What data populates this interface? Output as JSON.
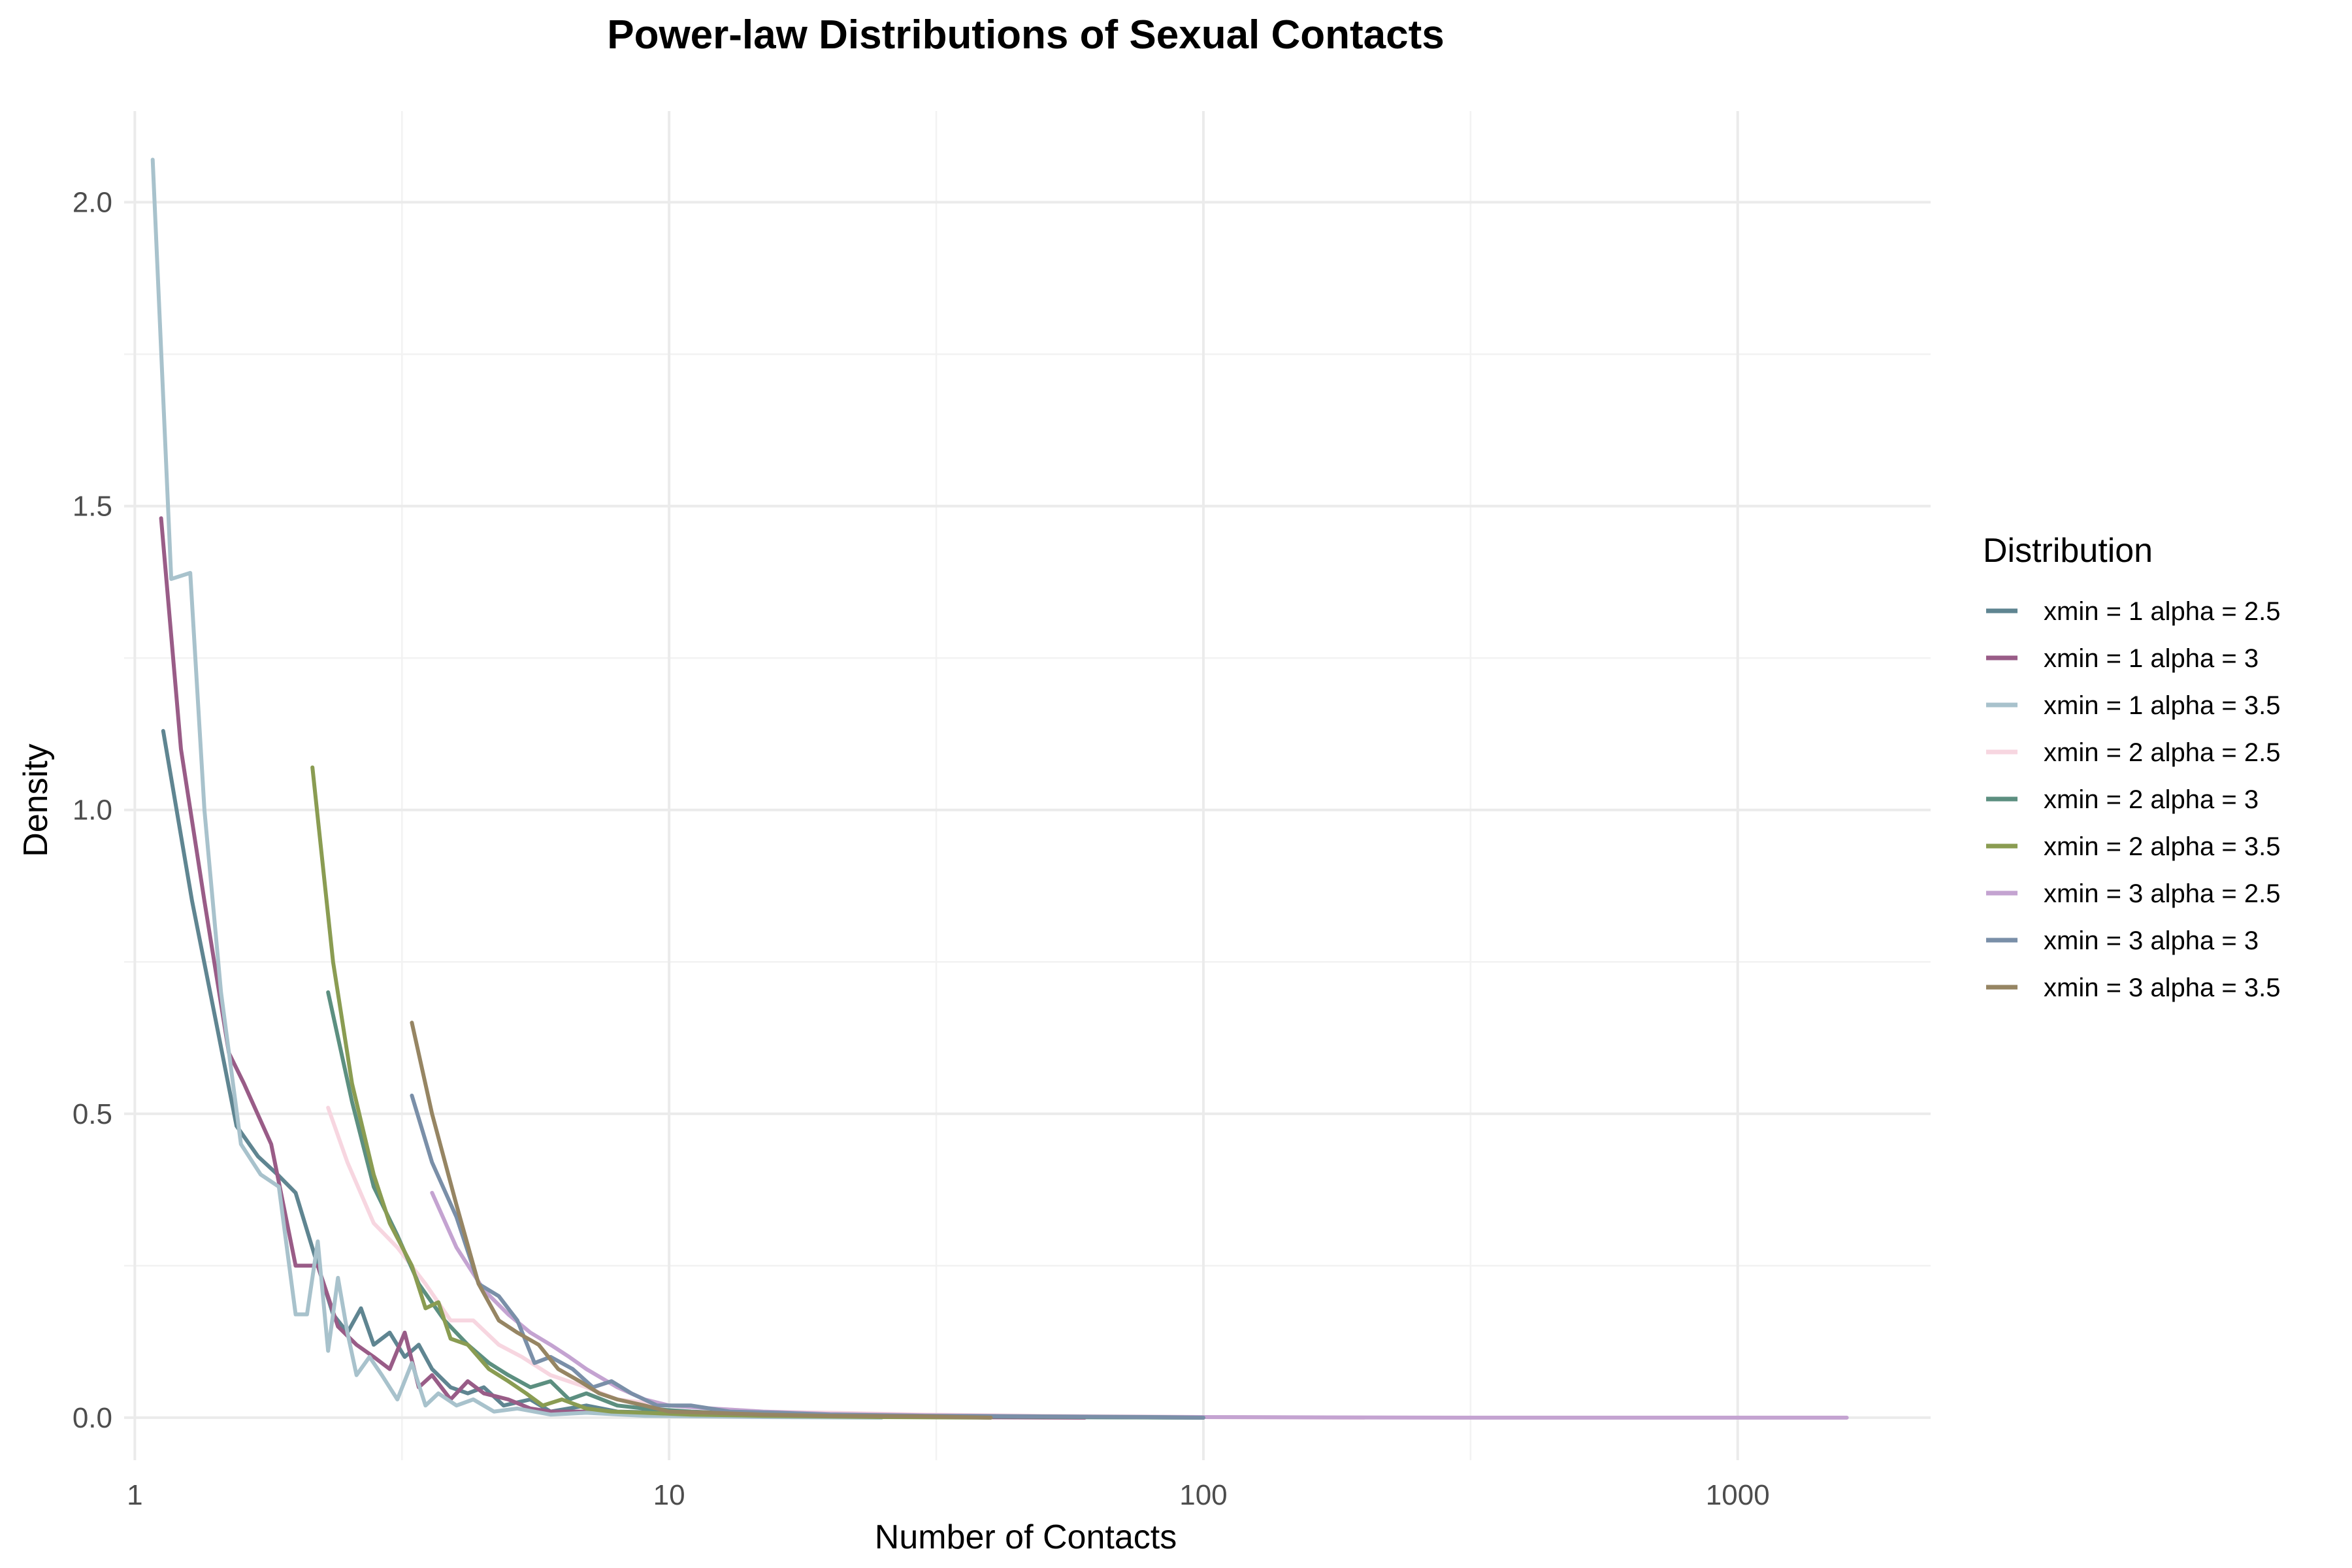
{
  "chart_data": {
    "type": "line",
    "title": "Power-law Distributions of Sexual Contacts",
    "xlabel": "Number of Contacts",
    "ylabel": "Density",
    "x_scale": "log10",
    "xlim": [
      1,
      2000
    ],
    "ylim": [
      -0.07,
      2.15
    ],
    "x_ticks": [
      1,
      10,
      100,
      1000
    ],
    "x_tick_labels": [
      "1",
      "10",
      "100",
      "1000"
    ],
    "y_ticks": [
      0,
      0.5,
      1.0,
      1.5,
      2.0
    ],
    "y_tick_labels": [
      "0.0",
      "0.5",
      "1.0",
      "1.5",
      "2.0"
    ],
    "grid": true,
    "legend": {
      "title": "Distribution",
      "position": "right"
    },
    "series": [
      {
        "name": "xmin = 1 alpha = 2.5",
        "color": "#5f8591",
        "points": [
          [
            1.13,
            1.13
          ],
          [
            1.28,
            0.85
          ],
          [
            1.42,
            0.65
          ],
          [
            1.55,
            0.48
          ],
          [
            1.7,
            0.43
          ],
          [
            1.85,
            0.4
          ],
          [
            2.0,
            0.37
          ],
          [
            2.2,
            0.25
          ],
          [
            2.35,
            0.17
          ],
          [
            2.5,
            0.14
          ],
          [
            2.65,
            0.18
          ],
          [
            2.8,
            0.12
          ],
          [
            3.0,
            0.14
          ],
          [
            3.2,
            0.1
          ],
          [
            3.4,
            0.12
          ],
          [
            3.6,
            0.08
          ],
          [
            3.9,
            0.05
          ],
          [
            4.2,
            0.04
          ],
          [
            4.5,
            0.05
          ],
          [
            4.9,
            0.02
          ],
          [
            5.5,
            0.03
          ],
          [
            6.0,
            0.01
          ],
          [
            7.0,
            0.02
          ],
          [
            8.0,
            0.01
          ],
          [
            10,
            0.008
          ],
          [
            13,
            0.005
          ],
          [
            20,
            0.004
          ],
          [
            30,
            0.002
          ],
          [
            50,
            0.001
          ],
          [
            100,
            0.0
          ]
        ]
      },
      {
        "name": "xmin = 1 alpha = 3",
        "color": "#995c87",
        "points": [
          [
            1.12,
            1.48
          ],
          [
            1.22,
            1.1
          ],
          [
            1.35,
            0.85
          ],
          [
            1.5,
            0.6
          ],
          [
            1.6,
            0.55
          ],
          [
            1.8,
            0.45
          ],
          [
            2.0,
            0.25
          ],
          [
            2.2,
            0.25
          ],
          [
            2.4,
            0.15
          ],
          [
            2.6,
            0.12
          ],
          [
            2.8,
            0.1
          ],
          [
            3.0,
            0.08
          ],
          [
            3.2,
            0.14
          ],
          [
            3.4,
            0.05
          ],
          [
            3.6,
            0.07
          ],
          [
            3.9,
            0.03
          ],
          [
            4.2,
            0.06
          ],
          [
            4.5,
            0.04
          ],
          [
            5.0,
            0.03
          ],
          [
            5.5,
            0.015
          ],
          [
            6.0,
            0.01
          ],
          [
            7.0,
            0.01
          ],
          [
            9.0,
            0.005
          ],
          [
            15,
            0.002
          ],
          [
            30,
            0.001
          ],
          [
            60,
            0.0
          ]
        ]
      },
      {
        "name": "xmin = 1 alpha = 3.5",
        "color": "#a8c2cc",
        "points": [
          [
            1.08,
            2.07
          ],
          [
            1.17,
            1.38
          ],
          [
            1.27,
            1.39
          ],
          [
            1.35,
            1.0
          ],
          [
            1.45,
            0.7
          ],
          [
            1.58,
            0.45
          ],
          [
            1.72,
            0.4
          ],
          [
            1.86,
            0.38
          ],
          [
            2.0,
            0.17
          ],
          [
            2.1,
            0.17
          ],
          [
            2.2,
            0.29
          ],
          [
            2.3,
            0.11
          ],
          [
            2.4,
            0.23
          ],
          [
            2.5,
            0.14
          ],
          [
            2.6,
            0.07
          ],
          [
            2.75,
            0.1
          ],
          [
            2.9,
            0.07
          ],
          [
            3.1,
            0.03
          ],
          [
            3.3,
            0.09
          ],
          [
            3.5,
            0.02
          ],
          [
            3.7,
            0.04
          ],
          [
            4.0,
            0.02
          ],
          [
            4.3,
            0.03
          ],
          [
            4.7,
            0.01
          ],
          [
            5.2,
            0.015
          ],
          [
            6.0,
            0.005
          ],
          [
            7.0,
            0.008
          ],
          [
            9.0,
            0.003
          ],
          [
            15,
            0.001
          ],
          [
            25,
            0.0
          ]
        ]
      },
      {
        "name": "xmin = 2 alpha = 2.5",
        "color": "#f7d6e0",
        "points": [
          [
            2.3,
            0.51
          ],
          [
            2.5,
            0.42
          ],
          [
            2.8,
            0.32
          ],
          [
            3.1,
            0.28
          ],
          [
            3.5,
            0.22
          ],
          [
            3.9,
            0.16
          ],
          [
            4.3,
            0.16
          ],
          [
            4.8,
            0.12
          ],
          [
            5.3,
            0.1
          ],
          [
            6.0,
            0.07
          ],
          [
            7.0,
            0.05
          ],
          [
            8.0,
            0.03
          ],
          [
            10,
            0.02
          ],
          [
            12,
            0.015
          ],
          [
            15,
            0.01
          ],
          [
            20,
            0.008
          ],
          [
            30,
            0.005
          ],
          [
            50,
            0.003
          ],
          [
            100,
            0.001
          ],
          [
            200,
            0.0
          ]
        ]
      },
      {
        "name": "xmin = 2 alpha = 3",
        "color": "#5c8f80",
        "points": [
          [
            2.3,
            0.7
          ],
          [
            2.55,
            0.52
          ],
          [
            2.8,
            0.38
          ],
          [
            3.1,
            0.3
          ],
          [
            3.4,
            0.22
          ],
          [
            3.8,
            0.16
          ],
          [
            4.2,
            0.12
          ],
          [
            4.6,
            0.09
          ],
          [
            5.0,
            0.07
          ],
          [
            5.5,
            0.05
          ],
          [
            6.0,
            0.06
          ],
          [
            6.5,
            0.03
          ],
          [
            7.0,
            0.04
          ],
          [
            8.0,
            0.02
          ],
          [
            9.0,
            0.015
          ],
          [
            11,
            0.01
          ],
          [
            14,
            0.006
          ],
          [
            20,
            0.004
          ],
          [
            35,
            0.002
          ],
          [
            60,
            0.001
          ],
          [
            100,
            0.0
          ]
        ]
      },
      {
        "name": "xmin = 2 alpha = 3.5",
        "color": "#8a9c52",
        "points": [
          [
            2.15,
            1.07
          ],
          [
            2.35,
            0.75
          ],
          [
            2.55,
            0.55
          ],
          [
            2.8,
            0.4
          ],
          [
            3.0,
            0.32
          ],
          [
            3.3,
            0.25
          ],
          [
            3.5,
            0.18
          ],
          [
            3.7,
            0.19
          ],
          [
            3.9,
            0.13
          ],
          [
            4.2,
            0.12
          ],
          [
            4.6,
            0.08
          ],
          [
            5.0,
            0.06
          ],
          [
            5.4,
            0.04
          ],
          [
            5.8,
            0.02
          ],
          [
            6.3,
            0.03
          ],
          [
            7.0,
            0.015
          ],
          [
            7.8,
            0.01
          ],
          [
            9.0,
            0.008
          ],
          [
            11,
            0.005
          ],
          [
            15,
            0.003
          ],
          [
            25,
            0.001
          ],
          [
            40,
            0.0
          ]
        ]
      },
      {
        "name": "xmin = 3 alpha = 2.5",
        "color": "#c4a3d1",
        "points": [
          [
            3.6,
            0.37
          ],
          [
            4.0,
            0.28
          ],
          [
            4.5,
            0.21
          ],
          [
            5.0,
            0.17
          ],
          [
            5.5,
            0.14
          ],
          [
            6.0,
            0.12
          ],
          [
            6.5,
            0.1
          ],
          [
            7.0,
            0.08
          ],
          [
            8.0,
            0.05
          ],
          [
            9.0,
            0.03
          ],
          [
            10,
            0.02
          ],
          [
            12,
            0.015
          ],
          [
            15,
            0.01
          ],
          [
            20,
            0.006
          ],
          [
            30,
            0.004
          ],
          [
            50,
            0.002
          ],
          [
            100,
            0.001
          ],
          [
            300,
            0.0
          ],
          [
            1000,
            0.0
          ],
          [
            1600,
            0.0
          ]
        ]
      },
      {
        "name": "xmin = 3 alpha = 3",
        "color": "#7a8fa8",
        "points": [
          [
            3.3,
            0.53
          ],
          [
            3.6,
            0.42
          ],
          [
            4.0,
            0.33
          ],
          [
            4.4,
            0.22
          ],
          [
            4.8,
            0.2
          ],
          [
            5.2,
            0.16
          ],
          [
            5.6,
            0.09
          ],
          [
            6.0,
            0.1
          ],
          [
            6.6,
            0.08
          ],
          [
            7.2,
            0.05
          ],
          [
            7.8,
            0.06
          ],
          [
            8.5,
            0.04
          ],
          [
            9.5,
            0.02
          ],
          [
            11,
            0.02
          ],
          [
            13,
            0.01
          ],
          [
            16,
            0.008
          ],
          [
            20,
            0.005
          ],
          [
            30,
            0.003
          ],
          [
            50,
            0.002
          ],
          [
            80,
            0.001
          ],
          [
            100,
            0.0
          ]
        ]
      },
      {
        "name": "xmin = 3 alpha = 3.5",
        "color": "#968563",
        "points": [
          [
            3.3,
            0.65
          ],
          [
            3.6,
            0.5
          ],
          [
            4.0,
            0.35
          ],
          [
            4.4,
            0.22
          ],
          [
            4.8,
            0.16
          ],
          [
            5.2,
            0.14
          ],
          [
            5.7,
            0.12
          ],
          [
            6.2,
            0.08
          ],
          [
            6.8,
            0.06
          ],
          [
            7.4,
            0.04
          ],
          [
            8.0,
            0.03
          ],
          [
            9.0,
            0.02
          ],
          [
            10,
            0.01
          ],
          [
            12,
            0.008
          ],
          [
            15,
            0.005
          ],
          [
            20,
            0.003
          ],
          [
            30,
            0.002
          ],
          [
            40,
            0.0
          ]
        ]
      }
    ]
  }
}
